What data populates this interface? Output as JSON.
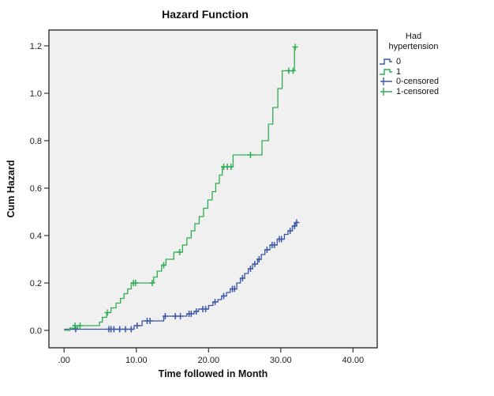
{
  "figure": {
    "title": "Hazard Function"
  },
  "chart_data": {
    "type": "line",
    "subtype": "step-survival-cumhazard",
    "title": "Hazard Function",
    "xlabel": "Time followed in Month",
    "ylabel": "Cum Hazard",
    "xlim": [
      -2.1,
      43.35
    ],
    "ylim": [
      -0.0733,
      1.2667
    ],
    "grid": false,
    "plot_background": "#F0F0F0",
    "frame_color": "#3C3C3C",
    "x_ticks": {
      "values": [
        0,
        10,
        20,
        30,
        40
      ],
      "labels": [
        ".00",
        "10.00",
        "20.00",
        "30.00",
        "40.00"
      ]
    },
    "y_ticks": {
      "values": [
        0,
        0.2,
        0.4,
        0.6,
        0.8,
        1.0,
        1.2
      ],
      "labels": [
        "0.0",
        "0.2",
        "0.4",
        "0.6",
        "0.8",
        "1.0",
        "1.2"
      ]
    },
    "legend": {
      "position": "right",
      "title_lines": [
        "Had",
        "hypertension"
      ],
      "entries": [
        {
          "label": "0",
          "symbol": "step",
          "color": "#3B56A5"
        },
        {
          "label": "1",
          "symbol": "step",
          "color": "#2FAC52"
        },
        {
          "label": "0-censored",
          "symbol": "plus",
          "color": "#3B56A5"
        },
        {
          "label": "1-censored",
          "symbol": "plus",
          "color": "#2FAC52"
        }
      ]
    },
    "series": [
      {
        "name": "0",
        "color": "#3B56A5",
        "points": [
          [
            0,
            0.005
          ],
          [
            9.7,
            0.02
          ],
          [
            10.8,
            0.04
          ],
          [
            13.8,
            0.06
          ],
          [
            17.0,
            0.07
          ],
          [
            18.0,
            0.08
          ],
          [
            18.6,
            0.09
          ],
          [
            20.0,
            0.105
          ],
          [
            20.6,
            0.12
          ],
          [
            21.3,
            0.13
          ],
          [
            21.8,
            0.145
          ],
          [
            22.5,
            0.16
          ],
          [
            23.0,
            0.175
          ],
          [
            23.9,
            0.2
          ],
          [
            24.4,
            0.22
          ],
          [
            25.0,
            0.24
          ],
          [
            25.5,
            0.26
          ],
          [
            26.1,
            0.28
          ],
          [
            26.8,
            0.3
          ],
          [
            27.3,
            0.32
          ],
          [
            27.8,
            0.34
          ],
          [
            28.5,
            0.36
          ],
          [
            29.5,
            0.385
          ],
          [
            30.5,
            0.405
          ],
          [
            31.0,
            0.42
          ],
          [
            31.6,
            0.44
          ],
          [
            32.0,
            0.455
          ],
          [
            32.4,
            0.455
          ]
        ],
        "censored": [
          [
            1.6,
            0.005
          ],
          [
            6.2,
            0.005
          ],
          [
            6.5,
            0.005
          ],
          [
            6.9,
            0.005
          ],
          [
            7.7,
            0.005
          ],
          [
            8.5,
            0.005
          ],
          [
            9.3,
            0.005
          ],
          [
            10.1,
            0.02
          ],
          [
            11.5,
            0.04
          ],
          [
            11.9,
            0.04
          ],
          [
            14.0,
            0.06
          ],
          [
            15.4,
            0.06
          ],
          [
            16.1,
            0.06
          ],
          [
            17.3,
            0.07
          ],
          [
            17.6,
            0.07
          ],
          [
            18.3,
            0.08
          ],
          [
            19.2,
            0.09
          ],
          [
            19.6,
            0.09
          ],
          [
            20.9,
            0.12
          ],
          [
            22.1,
            0.145
          ],
          [
            23.3,
            0.175
          ],
          [
            23.6,
            0.175
          ],
          [
            24.7,
            0.22
          ],
          [
            25.8,
            0.26
          ],
          [
            26.4,
            0.28
          ],
          [
            27.0,
            0.3
          ],
          [
            28.1,
            0.34
          ],
          [
            28.8,
            0.36
          ],
          [
            29.1,
            0.36
          ],
          [
            29.8,
            0.385
          ],
          [
            30.1,
            0.385
          ],
          [
            31.3,
            0.42
          ],
          [
            31.9,
            0.44
          ],
          [
            32.2,
            0.455
          ]
        ]
      },
      {
        "name": "1",
        "color": "#2FAC52",
        "points": [
          [
            0,
            0.0
          ],
          [
            0.8,
            0.01
          ],
          [
            1.9,
            0.02
          ],
          [
            4.9,
            0.035
          ],
          [
            5.3,
            0.055
          ],
          [
            5.9,
            0.075
          ],
          [
            6.5,
            0.095
          ],
          [
            7.2,
            0.115
          ],
          [
            7.8,
            0.135
          ],
          [
            8.3,
            0.155
          ],
          [
            8.8,
            0.175
          ],
          [
            9.3,
            0.2
          ],
          [
            12.4,
            0.225
          ],
          [
            12.9,
            0.25
          ],
          [
            13.5,
            0.275
          ],
          [
            14.1,
            0.3
          ],
          [
            15.2,
            0.33
          ],
          [
            16.4,
            0.36
          ],
          [
            17.0,
            0.39
          ],
          [
            17.6,
            0.42
          ],
          [
            18.1,
            0.45
          ],
          [
            18.7,
            0.48
          ],
          [
            19.3,
            0.515
          ],
          [
            19.9,
            0.55
          ],
          [
            20.5,
            0.585
          ],
          [
            21.0,
            0.62
          ],
          [
            21.5,
            0.655
          ],
          [
            21.9,
            0.69
          ],
          [
            23.4,
            0.74
          ],
          [
            27.4,
            0.8
          ],
          [
            28.3,
            0.87
          ],
          [
            28.9,
            0.94
          ],
          [
            29.6,
            1.02
          ],
          [
            30.2,
            1.095
          ],
          [
            31.9,
            1.195
          ],
          [
            32.2,
            1.195
          ]
        ],
        "censored": [
          [
            1.5,
            0.02
          ],
          [
            2.2,
            0.02
          ],
          [
            6.0,
            0.075
          ],
          [
            9.6,
            0.2
          ],
          [
            9.9,
            0.2
          ],
          [
            12.2,
            0.2
          ],
          [
            13.8,
            0.275
          ],
          [
            16.0,
            0.33
          ],
          [
            22.1,
            0.69
          ],
          [
            22.6,
            0.69
          ],
          [
            23.1,
            0.69
          ],
          [
            25.8,
            0.74
          ],
          [
            31.1,
            1.095
          ],
          [
            31.7,
            1.095
          ],
          [
            32.0,
            1.195
          ]
        ]
      }
    ]
  }
}
